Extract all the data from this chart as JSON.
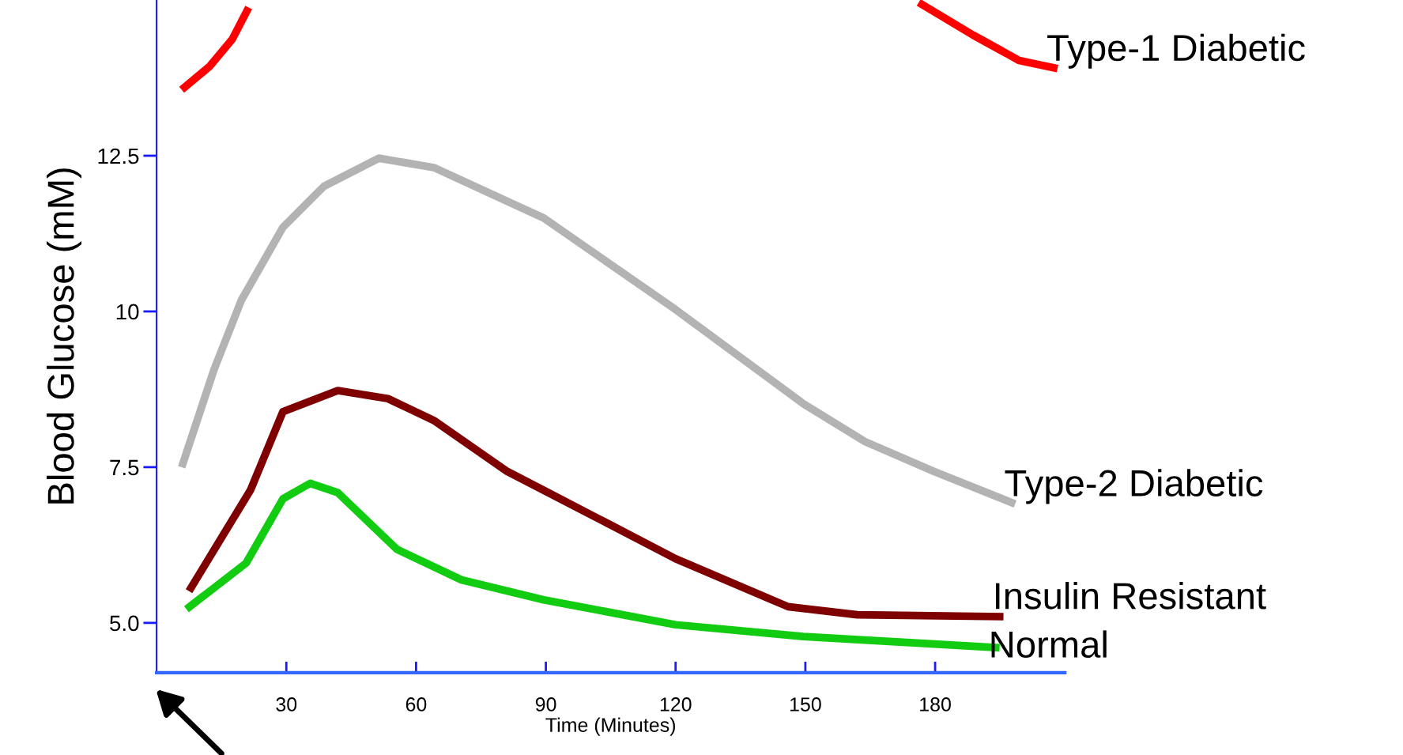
{
  "chart_data": {
    "type": "line",
    "xlabel": "Time (Minutes)",
    "ylabel": "Blood Glucose (mM)",
    "xlim": [
      0,
      210
    ],
    "ylim": [
      4.2,
      15
    ],
    "xticks": [
      30,
      60,
      90,
      120,
      150,
      180
    ],
    "yticks": [
      {
        "value": 5,
        "label": "5.0"
      },
      7.5,
      10,
      12.5
    ],
    "grid": false,
    "legend": false,
    "series": [
      {
        "name": "Type-1 Diabetic",
        "color": "#ff0000",
        "x": [
          5.8,
          12.2,
          17.5,
          21.3,
          100,
          176.2,
          188.7,
          199.4,
          208.3
        ],
        "values": [
          13.56,
          13.93,
          14.37,
          14.88,
          null,
          14.96,
          14.44,
          14.03,
          13.9
        ]
      },
      {
        "name": "Type-2 Diabetic",
        "color": "#b3b3b3",
        "x": [
          5.8,
          13.3,
          19.6,
          29.2,
          38.7,
          51.4,
          64.1,
          89.5,
          120,
          149.5,
          163.8,
          179.8,
          198.5
        ],
        "values": [
          7.5,
          9.07,
          10.18,
          11.35,
          12.01,
          12.46,
          12.31,
          11.5,
          10.03,
          8.52,
          7.91,
          7.43,
          6.91
        ]
      },
      {
        "name": "Insulin Resistant",
        "color": "#7f0000",
        "x": [
          7.5,
          21.7,
          29.2,
          41.9,
          53.5,
          64.1,
          81.1,
          89.5,
          120,
          146,
          162,
          195.8
        ],
        "values": [
          5.51,
          7.13,
          8.39,
          8.73,
          8.6,
          8.25,
          7.43,
          7.13,
          6.03,
          5.26,
          5.13,
          5.1
        ]
      },
      {
        "name": "Normal",
        "color": "#11cc11",
        "x": [
          6.9,
          20.7,
          29.2,
          35.5,
          41.9,
          55.6,
          70.5,
          89.5,
          120,
          149.5,
          194.9
        ],
        "values": [
          5.22,
          5.96,
          6.99,
          7.24,
          7.09,
          6.18,
          5.69,
          5.37,
          4.97,
          4.78,
          4.6
        ]
      }
    ]
  }
}
